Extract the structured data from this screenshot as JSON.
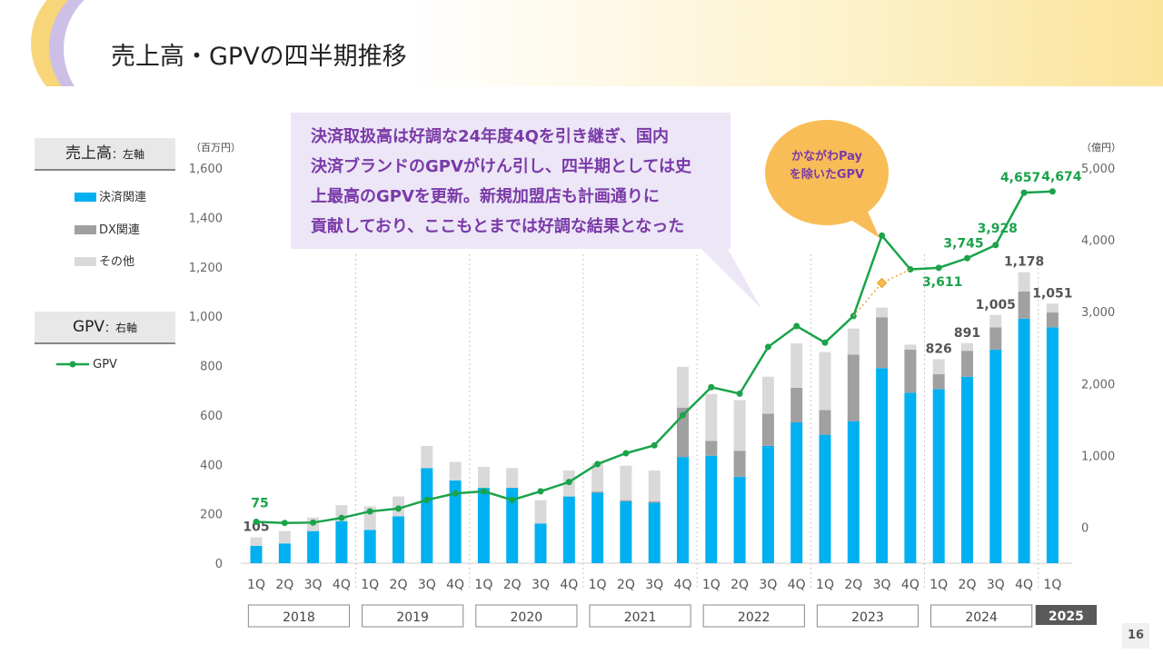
{
  "title": "売上高・GPVの四半期推移",
  "legend": {
    "sales_box_main": "売上高",
    "sales_box_sub": "：左軸",
    "items": [
      {
        "label": "決済関連",
        "color": "#00b0f0"
      },
      {
        "label": "DX関連",
        "color": "#a0a0a0"
      },
      {
        "label": "その他",
        "color": "#d9d9d9"
      }
    ],
    "gpv_box_main": "GPV",
    "gpv_box_sub": "：右軸",
    "gpv_label": "GPV",
    "gpv_color": "#1aa34a"
  },
  "callout": {
    "lines": [
      "決済取扱高は好調な24年度4Qを引き継ぎ、国内",
      "決済ブランドのGPVがけん引し、四半期としては史",
      "上最高のGPVを更新。新規加盟店も計画通りに",
      "貢献しており、ここもとまでは好調な結果となった"
    ]
  },
  "circle_note": {
    "line1": "かながわPay",
    "line2": "を除いたGPV"
  },
  "page_number": "16",
  "chart_data": {
    "type": "bar+line",
    "left_axis": {
      "unit": "（百万円）",
      "ylim": [
        0,
        1600
      ],
      "ticks": [
        "0",
        "200",
        "400",
        "600",
        "800",
        "1,000",
        "1,200",
        "1,400",
        "1,600"
      ]
    },
    "right_axis": {
      "unit": "（億円）",
      "ylim": [
        -500,
        5000
      ],
      "ticks": [
        "0",
        "1,000",
        "2,000",
        "3,000",
        "4,000",
        "5,000"
      ]
    },
    "quarters": [
      "1Q",
      "2Q",
      "3Q",
      "4Q",
      "1Q",
      "2Q",
      "3Q",
      "4Q",
      "1Q",
      "2Q",
      "3Q",
      "4Q",
      "1Q",
      "2Q",
      "3Q",
      "4Q",
      "1Q",
      "2Q",
      "3Q",
      "4Q",
      "1Q",
      "2Q",
      "3Q",
      "4Q",
      "1Q",
      "2Q",
      "3Q",
      "4Q",
      "1Q"
    ],
    "years": [
      "2018",
      "2019",
      "2020",
      "2021",
      "2022",
      "2023",
      "2024",
      "2025"
    ],
    "series": [
      {
        "name": "決済関連",
        "values": [
          70,
          80,
          130,
          170,
          135,
          190,
          385,
          335,
          305,
          305,
          160,
          270,
          285,
          250,
          245,
          430,
          435,
          350,
          475,
          570,
          520,
          575,
          790,
          690,
          705,
          755,
          865,
          990,
          955
        ]
      },
      {
        "name": "DX関連",
        "values": [
          0,
          0,
          0,
          0,
          0,
          0,
          0,
          0,
          0,
          0,
          0,
          0,
          5,
          5,
          5,
          200,
          60,
          105,
          130,
          140,
          100,
          270,
          205,
          175,
          60,
          105,
          90,
          110,
          60
        ]
      },
      {
        "name": "その他",
        "values": [
          35,
          50,
          55,
          65,
          95,
          80,
          90,
          75,
          85,
          80,
          95,
          105,
          115,
          140,
          125,
          165,
          190,
          205,
          150,
          180,
          235,
          105,
          40,
          20,
          61,
          31,
          50,
          78,
          36
        ]
      }
    ],
    "bar_labels": [
      {
        "index": 0,
        "text": "105"
      },
      {
        "index": 24,
        "text": "826"
      },
      {
        "index": 25,
        "text": "891"
      },
      {
        "index": 26,
        "text": "1,005"
      },
      {
        "index": 27,
        "text": "1,178"
      },
      {
        "index": 28,
        "text": "1,051"
      }
    ],
    "gpv": {
      "name": "GPV",
      "values": [
        75,
        60,
        65,
        130,
        220,
        260,
        380,
        470,
        500,
        380,
        500,
        630,
        880,
        1030,
        1140,
        1560,
        1950,
        1860,
        2510,
        2800,
        2570,
        2940,
        4060,
        3590,
        3611,
        3745,
        3928,
        4657,
        4674
      ],
      "labels": [
        {
          "index": 0,
          "text": "75"
        },
        {
          "index": 24,
          "text": "3,611"
        },
        {
          "index": 25,
          "text": "3,745"
        },
        {
          "index": 26,
          "text": "3,928"
        },
        {
          "index": 27,
          "text": "4,657"
        },
        {
          "index": 28,
          "text": "4,674"
        }
      ],
      "excluding_kanagawa_pay": {
        "index": 22,
        "value": 3400
      }
    }
  }
}
